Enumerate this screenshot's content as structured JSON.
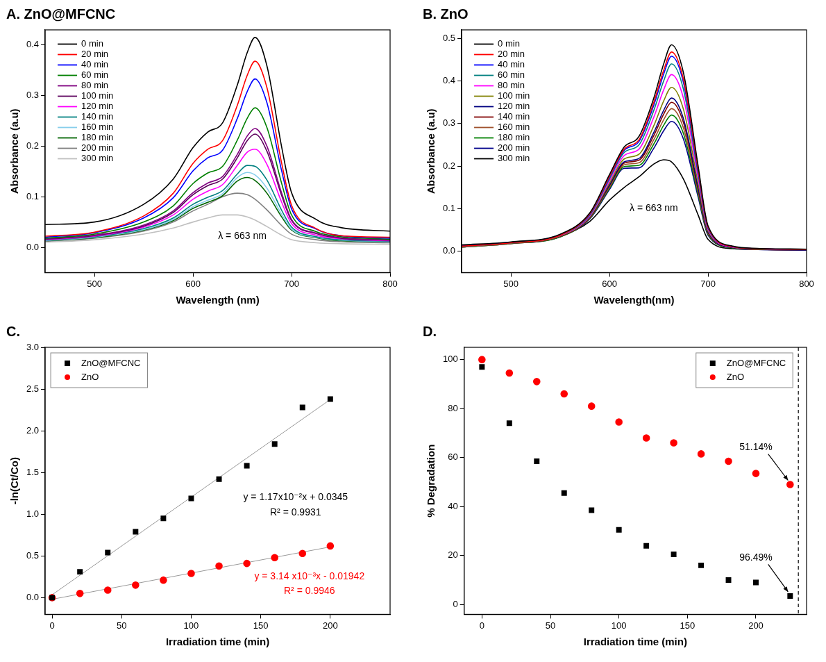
{
  "chart_data": [
    {
      "type": "line",
      "title": "A. ZnO@MFCNC",
      "x_label": "Wavelength (nm)",
      "y_label": "Absorbance (a.u)",
      "x": [
        450,
        500,
        550,
        580,
        600,
        615,
        630,
        645,
        655,
        663,
        675,
        690,
        700,
        725,
        750,
        800
      ],
      "xlim": [
        450,
        800
      ],
      "xticks": [
        500,
        600,
        700,
        800
      ],
      "ylim": [
        -0.05,
        0.43
      ],
      "yticks": [
        {
          "value": 0,
          "label": "0.0"
        },
        0.1,
        0.2,
        0.3,
        0.4
      ],
      "grid": false,
      "legend": "upper left",
      "annotations": [
        {
          "text": "λ = 663 nm",
          "x": 650,
          "y": 0.022
        }
      ],
      "series": [
        {
          "name": "0 min",
          "color": "#000000",
          "values": [
            0.045,
            0.05,
            0.085,
            0.135,
            0.197,
            0.228,
            0.246,
            0.321,
            0.385,
            0.415,
            0.359,
            0.198,
            0.108,
            0.055,
            0.039,
            0.032
          ]
        },
        {
          "name": "20 min",
          "color": "#ff0000",
          "values": [
            0.022,
            0.03,
            0.062,
            0.107,
            0.166,
            0.194,
            0.211,
            0.281,
            0.34,
            0.368,
            0.316,
            0.166,
            0.083,
            0.037,
            0.023,
            0.02
          ]
        },
        {
          "name": "40 min",
          "color": "#0000ff",
          "values": [
            0.02,
            0.029,
            0.058,
            0.098,
            0.151,
            0.177,
            0.192,
            0.255,
            0.308,
            0.333,
            0.286,
            0.151,
            0.076,
            0.036,
            0.023,
            0.018
          ]
        },
        {
          "name": "60 min",
          "color": "#008000",
          "values": [
            0.018,
            0.026,
            0.05,
            0.082,
            0.126,
            0.147,
            0.16,
            0.212,
            0.255,
            0.276,
            0.237,
            0.126,
            0.064,
            0.031,
            0.021,
            0.016
          ]
        },
        {
          "name": "80 min",
          "color": "#800080",
          "values": [
            0.017,
            0.024,
            0.044,
            0.072,
            0.108,
            0.127,
            0.14,
            0.184,
            0.22,
            0.235,
            0.2,
            0.107,
            0.055,
            0.028,
            0.019,
            0.015
          ]
        },
        {
          "name": "100 min",
          "color": "#5c005c",
          "values": [
            0.016,
            0.023,
            0.042,
            0.069,
            0.104,
            0.122,
            0.135,
            0.177,
            0.211,
            0.224,
            0.19,
            0.102,
            0.053,
            0.027,
            0.018,
            0.014
          ]
        },
        {
          "name": "120 min",
          "color": "#ff00ff",
          "values": [
            0.015,
            0.022,
            0.04,
            0.064,
            0.095,
            0.111,
            0.124,
            0.162,
            0.188,
            0.194,
            0.164,
            0.089,
            0.047,
            0.024,
            0.017,
            0.013
          ]
        },
        {
          "name": "140 min",
          "color": "#008080",
          "values": [
            0.014,
            0.021,
            0.037,
            0.058,
            0.085,
            0.099,
            0.112,
            0.145,
            0.162,
            0.16,
            0.133,
            0.073,
            0.04,
            0.021,
            0.015,
            0.012
          ]
        },
        {
          "name": "160 min",
          "color": "#87ceeb",
          "values": [
            0.013,
            0.02,
            0.035,
            0.055,
            0.08,
            0.093,
            0.106,
            0.138,
            0.148,
            0.143,
            0.117,
            0.065,
            0.036,
            0.02,
            0.014,
            0.011
          ]
        },
        {
          "name": "180 min",
          "color": "#006400",
          "values": [
            0.013,
            0.019,
            0.034,
            0.053,
            0.077,
            0.089,
            0.102,
            0.131,
            0.138,
            0.132,
            0.107,
            0.06,
            0.034,
            0.019,
            0.013,
            0.011
          ]
        },
        {
          "name": "200 min",
          "color": "#808080",
          "values": [
            0.012,
            0.018,
            0.032,
            0.05,
            0.072,
            0.085,
            0.1,
            0.107,
            0.104,
            0.095,
            0.074,
            0.043,
            0.026,
            0.015,
            0.011,
            0.009
          ]
        },
        {
          "name": "300 min",
          "color": "#c0c0c0",
          "values": [
            0.01,
            0.015,
            0.026,
            0.038,
            0.05,
            0.058,
            0.064,
            0.064,
            0.06,
            0.054,
            0.041,
            0.024,
            0.015,
            0.009,
            0.007,
            0.006
          ]
        }
      ]
    },
    {
      "type": "line",
      "title": "B. ZnO",
      "x_label": "Wavelength(nm)",
      "y_label": "Absorbance (a.u)",
      "x": [
        450,
        500,
        550,
        580,
        600,
        615,
        630,
        645,
        655,
        663,
        675,
        690,
        700,
        725,
        750,
        800
      ],
      "xlim": [
        450,
        800
      ],
      "xticks": [
        500,
        600,
        700,
        800
      ],
      "ylim": [
        -0.05,
        0.52
      ],
      "yticks": [
        {
          "value": 0,
          "label": "0.0"
        },
        0.1,
        0.2,
        0.3,
        0.4,
        0.5
      ],
      "grid": false,
      "legend": "upper left",
      "annotations": [
        {
          "text": "λ = 663 nm",
          "x": 645,
          "y": 0.1
        }
      ],
      "series": [
        {
          "name": "0 min",
          "color": "#000000",
          "values": [
            0.015,
            0.022,
            0.04,
            0.09,
            0.18,
            0.245,
            0.27,
            0.36,
            0.44,
            0.485,
            0.42,
            0.2,
            0.06,
            0.012,
            0.007,
            0.005
          ]
        },
        {
          "name": "20 min",
          "color": "#ff0000",
          "values": [
            0.012,
            0.02,
            0.038,
            0.088,
            0.176,
            0.24,
            0.262,
            0.35,
            0.425,
            0.468,
            0.405,
            0.192,
            0.057,
            0.011,
            0.006,
            0.004
          ]
        },
        {
          "name": "40 min",
          "color": "#0000ff",
          "values": [
            0.013,
            0.021,
            0.039,
            0.087,
            0.174,
            0.237,
            0.258,
            0.343,
            0.416,
            0.458,
            0.397,
            0.188,
            0.056,
            0.011,
            0.006,
            0.004
          ]
        },
        {
          "name": "60 min",
          "color": "#008080",
          "values": [
            0.012,
            0.02,
            0.038,
            0.085,
            0.17,
            0.232,
            0.25,
            0.331,
            0.4,
            0.44,
            0.381,
            0.181,
            0.054,
            0.011,
            0.006,
            0.004
          ]
        },
        {
          "name": "80 min",
          "color": "#ff00ff",
          "values": [
            0.012,
            0.02,
            0.037,
            0.083,
            0.165,
            0.225,
            0.24,
            0.315,
            0.379,
            0.415,
            0.36,
            0.171,
            0.051,
            0.01,
            0.006,
            0.004
          ]
        },
        {
          "name": "100 min",
          "color": "#808000",
          "values": [
            0.011,
            0.019,
            0.036,
            0.081,
            0.16,
            0.217,
            0.228,
            0.295,
            0.353,
            0.385,
            0.334,
            0.159,
            0.048,
            0.01,
            0.005,
            0.004
          ]
        },
        {
          "name": "120 min",
          "color": "#000080",
          "values": [
            0.011,
            0.019,
            0.036,
            0.08,
            0.156,
            0.21,
            0.218,
            0.279,
            0.331,
            0.36,
            0.312,
            0.149,
            0.045,
            0.009,
            0.005,
            0.003
          ]
        },
        {
          "name": "140 min",
          "color": "#800000",
          "values": [
            0.011,
            0.019,
            0.035,
            0.079,
            0.154,
            0.207,
            0.214,
            0.272,
            0.322,
            0.35,
            0.303,
            0.145,
            0.044,
            0.009,
            0.005,
            0.003
          ]
        },
        {
          "name": "160 min",
          "color": "#a0522d",
          "values": [
            0.01,
            0.018,
            0.035,
            0.078,
            0.151,
            0.203,
            0.208,
            0.262,
            0.309,
            0.335,
            0.29,
            0.139,
            0.042,
            0.009,
            0.005,
            0.003
          ]
        },
        {
          "name": "180 min",
          "color": "#008000",
          "values": [
            0.01,
            0.018,
            0.034,
            0.077,
            0.148,
            0.199,
            0.202,
            0.252,
            0.296,
            0.32,
            0.277,
            0.133,
            0.04,
            0.008,
            0.005,
            0.003
          ]
        },
        {
          "name": "200 min",
          "color": "#00008b",
          "values": [
            0.01,
            0.018,
            0.034,
            0.076,
            0.145,
            0.195,
            0.196,
            0.242,
            0.283,
            0.305,
            0.264,
            0.127,
            0.038,
            0.008,
            0.004,
            0.003
          ]
        },
        {
          "name": "300 min",
          "color": "#000000",
          "values": [
            0.012,
            0.02,
            0.036,
            0.07,
            0.12,
            0.15,
            0.175,
            0.205,
            0.215,
            0.21,
            0.17,
            0.085,
            0.028,
            0.006,
            0.004,
            0.003
          ]
        }
      ]
    },
    {
      "type": "scatter",
      "title": "C.",
      "x_label": "Irradiation time (min)",
      "y_label": "-ln(Ct/Co)",
      "x": [
        0,
        20,
        40,
        60,
        80,
        100,
        120,
        140,
        160,
        180,
        200
      ],
      "xlim": [
        -5,
        243
      ],
      "xticks": [
        0,
        50,
        100,
        150,
        200
      ],
      "ylim": [
        -0.2,
        3.0
      ],
      "yticks": [
        {
          "value": 0,
          "label": "0.0"
        },
        0.5,
        {
          "value": 1,
          "label": "1.0"
        },
        1.5,
        {
          "value": 2,
          "label": "2.0"
        },
        2.5,
        {
          "value": 3,
          "label": "3.0"
        }
      ],
      "grid": false,
      "legend": "upper left",
      "annotations": [
        {
          "text": "y = 1.17x10⁻²x + 0.0345",
          "x": 175,
          "y": 1.2,
          "color": "#000000"
        },
        {
          "text": "R² = 0.9931",
          "x": 175,
          "y": 1.02,
          "color": "#000000"
        },
        {
          "text": "y = 3.14 x10⁻³x - 0.01942",
          "x": 185,
          "y": 0.25,
          "color": "#ff0000"
        },
        {
          "text": "R² = 0.9946",
          "x": 185,
          "y": 0.08,
          "color": "#ff0000"
        }
      ],
      "series": [
        {
          "name": "ZnO@MFCNC",
          "color": "#000000",
          "marker": "square",
          "values": [
            0,
            0.31,
            0.54,
            0.79,
            0.95,
            1.19,
            1.42,
            1.58,
            1.84,
            2.28,
            2.38
          ],
          "fit": {
            "x": [
              0,
              200
            ],
            "values": [
              0.0345,
              2.3745
            ],
            "color": "#999999"
          }
        },
        {
          "name": "ZnO",
          "color": "#ff0000",
          "marker": "circle",
          "values": [
            0,
            0.05,
            0.09,
            0.15,
            0.21,
            0.29,
            0.38,
            0.41,
            0.48,
            0.53,
            0.62
          ],
          "fit": {
            "x": [
              0,
              200
            ],
            "values": [
              -0.01942,
              0.60858
            ],
            "color": "#999999"
          }
        }
      ]
    },
    {
      "type": "scatter",
      "title": "D.",
      "x_label": "Irradiation time (min)",
      "y_label": "% Degradation",
      "x": [
        0,
        20,
        40,
        60,
        80,
        100,
        120,
        140,
        160,
        180,
        200,
        225
      ],
      "xlim": [
        -13,
        237
      ],
      "xticks": [
        0,
        50,
        100,
        150,
        200
      ],
      "ylim": [
        -4,
        105
      ],
      "yticks": [
        0,
        20,
        40,
        60,
        80,
        100
      ],
      "grid": false,
      "legend": "upper right",
      "reference_x": 231,
      "annotations": [
        {
          "text": "51.14%",
          "x": 200,
          "y": 64,
          "arrow_x": 225,
          "arrow_y": 49
        },
        {
          "text": "96.49%",
          "x": 200,
          "y": 19,
          "arrow_x": 225,
          "arrow_y": 3.5
        }
      ],
      "series": [
        {
          "name": "ZnO@MFCNC",
          "color": "#000000",
          "marker": "square",
          "values": [
            97,
            74,
            58.5,
            45.5,
            38.5,
            30.5,
            24,
            20.5,
            16,
            10,
            9,
            3.5
          ]
        },
        {
          "name": "ZnO",
          "color": "#ff0000",
          "marker": "circle",
          "values": [
            100,
            94.5,
            91,
            86,
            81,
            74.5,
            68,
            66,
            61.5,
            58.5,
            53.5,
            49
          ]
        }
      ]
    }
  ]
}
